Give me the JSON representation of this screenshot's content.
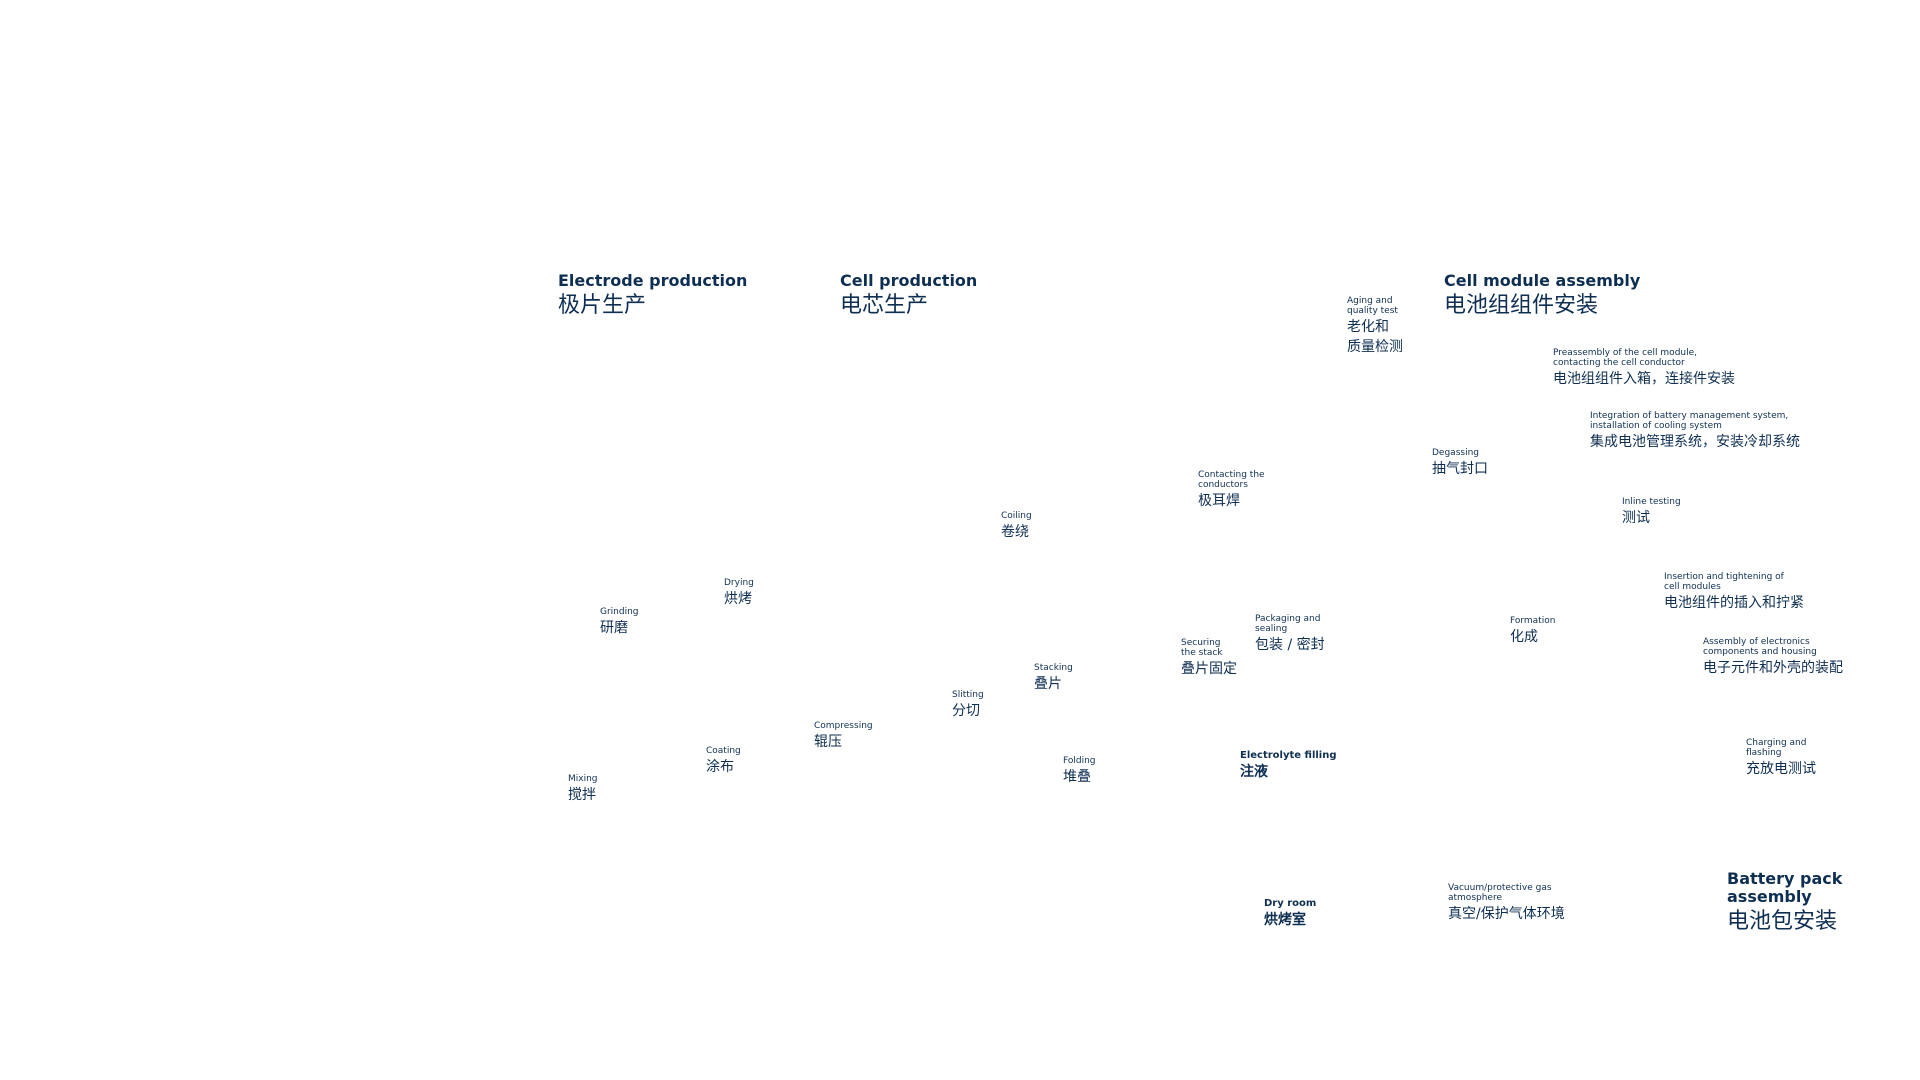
{
  "sections": [
    {
      "en": [
        "Electrode production"
      ],
      "zh": [
        "极片生产"
      ]
    },
    {
      "en": [
        "Cell production"
      ],
      "zh": [
        "电芯生产"
      ]
    },
    {
      "en": [
        "Cell module assembly"
      ],
      "zh": [
        "电池组组件安装"
      ]
    },
    {
      "en": [
        "Battery pack",
        "assembly"
      ],
      "zh": [
        "电池包安装"
      ]
    }
  ],
  "steps": [
    {
      "en": [
        "Mixing"
      ],
      "zh": [
        "搅拌"
      ]
    },
    {
      "en": [
        "Grinding"
      ],
      "zh": [
        "研磨"
      ]
    },
    {
      "en": [
        "Coating"
      ],
      "zh": [
        "涂布"
      ]
    },
    {
      "en": [
        "Drying"
      ],
      "zh": [
        "烘烤"
      ]
    },
    {
      "en": [
        "Compressing"
      ],
      "zh": [
        "辊压"
      ]
    },
    {
      "en": [
        "Slitting"
      ],
      "zh": [
        "分切"
      ]
    },
    {
      "en": [
        "Coiling"
      ],
      "zh": [
        "卷绕"
      ]
    },
    {
      "en": [
        "Stacking"
      ],
      "zh": [
        "叠片"
      ]
    },
    {
      "en": [
        "Folding"
      ],
      "zh": [
        "堆叠"
      ]
    },
    {
      "en": [
        "Securing",
        "the stack"
      ],
      "zh": [
        "叠片固定"
      ]
    },
    {
      "en": [
        "Contacting the",
        "conductors"
      ],
      "zh": [
        "极耳焊"
      ]
    },
    {
      "en": [
        "Packaging and",
        "sealing"
      ],
      "zh": [
        "包装 / 密封"
      ]
    },
    {
      "en": [
        "Electrolyte filling"
      ],
      "zh": [
        "注液"
      ]
    },
    {
      "en": [
        "Dry room"
      ],
      "zh": [
        "烘烤室"
      ]
    },
    {
      "en": [
        "Aging and",
        "quality test"
      ],
      "zh": [
        "老化和",
        "质量检测"
      ]
    },
    {
      "en": [
        "Degassing"
      ],
      "zh": [
        "抽气封口"
      ]
    },
    {
      "en": [
        "Formation"
      ],
      "zh": [
        "化成"
      ]
    },
    {
      "en": [
        "Vacuum/protective gas",
        "atmosphere"
      ],
      "zh": [
        "真空/保护气体环境"
      ]
    },
    {
      "en": [
        "Preassembly of the cell module,",
        "contacting the cell conductor"
      ],
      "zh": [
        "电池组组件入箱，连接件安装"
      ]
    },
    {
      "en": [
        "Integration of battery management system,",
        "installation of cooling system"
      ],
      "zh": [
        "集成电池管理系统，安装冷却系统"
      ]
    },
    {
      "en": [
        "Inline testing"
      ],
      "zh": [
        "测试"
      ]
    },
    {
      "en": [
        "Insertion and tightening of",
        "cell modules"
      ],
      "zh": [
        "电池组件的插入和拧紧"
      ]
    },
    {
      "en": [
        "Assembly of electronics",
        "components and housing"
      ],
      "zh": [
        "电子元件和外壳的装配"
      ]
    },
    {
      "en": [
        "Charging and",
        "flashing"
      ],
      "zh": [
        "充放电测试"
      ]
    }
  ]
}
